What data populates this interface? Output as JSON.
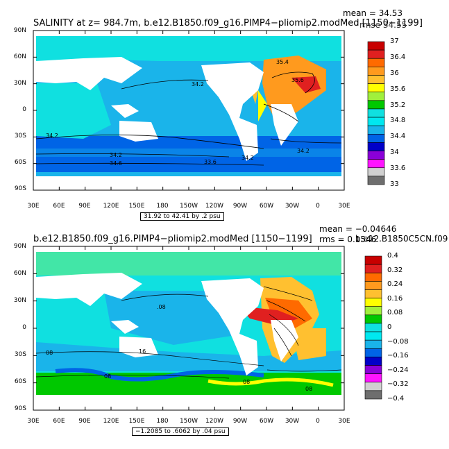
{
  "top": {
    "title": "SALINITY at z= 984.7m, b.e12.B1850.f09_g16.PIMP4−pliomip2.modMed [1150−1199]",
    "mean": "mean = 34.53",
    "rmse": "rmse 34.55",
    "range": "31.92 to 42.41 by .2 psu",
    "colorbar_labels": [
      "37",
      "36.4",
      "36",
      "35.6",
      "35.2",
      "34.8",
      "34.4",
      "34",
      "33.6",
      "33"
    ],
    "colorbar_colors": [
      "#c80000",
      "#e02020",
      "#ff6a00",
      "#ff9a1e",
      "#ffc030",
      "#ffff00",
      "#a0f03c",
      "#00c800",
      "#10e0e0",
      "#00e8f0",
      "#1ab4ea",
      "#0064e6",
      "#0000c8",
      "#8a00d8",
      "#ff14ff",
      "#d0d0d0",
      "#6e6e6e"
    ],
    "contour_labels": [
      "35.4",
      "34.2",
      "35.6",
      "34.2",
      "34.2",
      "34.6",
      "33.6",
      "34.2",
      "34.2"
    ]
  },
  "bottom": {
    "title": "b.e12.B1850.f09_g16.PIMP4−pliomip2.modMed [1150−1199]",
    "mean": "mean = −0.04646",
    "rms": "rms = 0.1546",
    "case2": "b.e12.B1850C5CN.f09",
    "range": "−1.2085 to .6062 by .04 psu",
    "colorbar_labels": [
      "0.4",
      "0.32",
      "0.24",
      "0.16",
      "0.08",
      "0",
      "−0.08",
      "−0.16",
      "−0.24",
      "−0.32",
      "−0.4"
    ],
    "colorbar_colors": [
      "#c80000",
      "#e02020",
      "#ff6a00",
      "#ff9a1e",
      "#ffc030",
      "#ffff00",
      "#a0f03c",
      "#00c800",
      "#10e0e0",
      "#00e8f0",
      "#1ab4ea",
      "#0064e6",
      "#0000c8",
      "#8a00d8",
      "#ff14ff",
      "#d0d0d0",
      "#6e6e6e"
    ],
    "contour_labels": [
      "08",
      ".08",
      "16",
      "08",
      "08",
      "08"
    ]
  },
  "axes": {
    "y_ticks": [
      "90N",
      "60N",
      "30N",
      "0",
      "30S",
      "60S",
      "90S"
    ],
    "x_ticks": [
      "30E",
      "60E",
      "90E",
      "120E",
      "150E",
      "180",
      "150W",
      "120W",
      "90W",
      "60W",
      "30W",
      "0",
      "30E"
    ]
  },
  "colors": {
    "ocean_top": "#1ab4ea",
    "ocean_top_south": "#0064e6",
    "ocean_top_north": "#10e0e0",
    "ocean_bottom": "#10e0e0",
    "ocean_bottom_south": "#1ab4ea",
    "atlantic_high": "#ff9a1e",
    "atlantic_peak": "#e02020"
  }
}
